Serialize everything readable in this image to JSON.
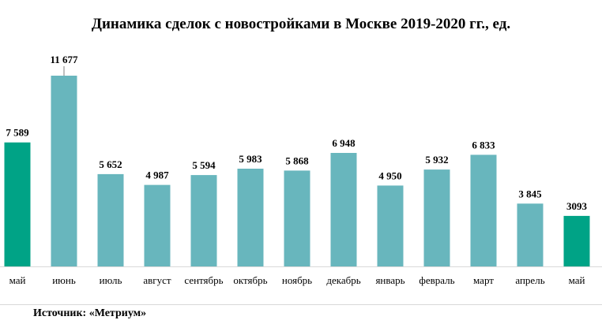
{
  "page": {
    "title": "Динамика сделок с новостройками в Москве 2019-2020 гг., ед.",
    "source": "Источник: «Метриум»"
  },
  "colors": {
    "bar_default": "#68b6bd",
    "bar_highlight": "#00a386",
    "axis": "#d9d9d9",
    "label": "#000000"
  },
  "chart_data": {
    "type": "bar",
    "title": "Динамика сделок с новостройками в Москве 2019-2020 гг., ед.",
    "xlabel": "",
    "ylabel": "",
    "ylim": [
      0,
      12000
    ],
    "grid": false,
    "categories": [
      "май",
      "июнь",
      "июль",
      "август",
      "сентябрь",
      "октябрь",
      "ноябрь",
      "декабрь",
      "январь",
      "февраль",
      "март",
      "апрель",
      "май"
    ],
    "values": [
      7589,
      11677,
      5652,
      4987,
      5594,
      5983,
      5868,
      6948,
      4950,
      5932,
      6833,
      3845,
      3093
    ],
    "data_labels": [
      "7 589",
      "11 677",
      "5 652",
      "4 987",
      "5 594",
      "5 983",
      "5 868",
      "6 948",
      "4 950",
      "5 932",
      "6 833",
      "3 845",
      "3093"
    ],
    "highlighted": [
      true,
      false,
      false,
      false,
      false,
      false,
      false,
      false,
      false,
      false,
      false,
      false,
      true
    ]
  }
}
